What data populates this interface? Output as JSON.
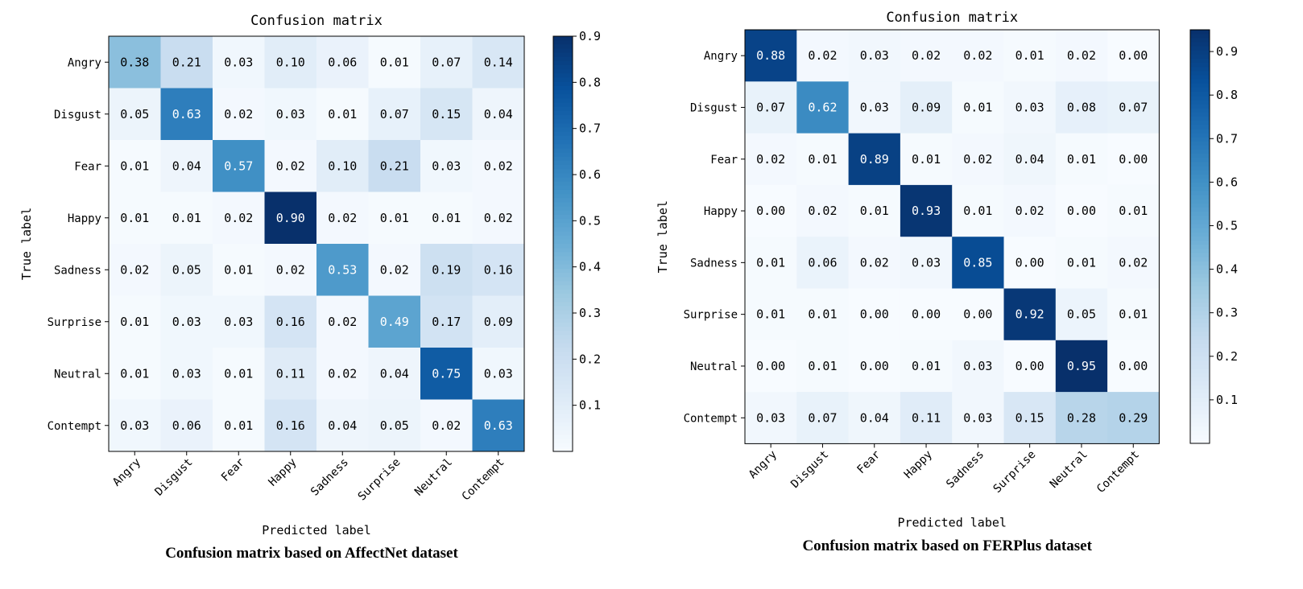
{
  "chart_data": [
    {
      "type": "heatmap",
      "title": "Confusion matrix",
      "xlabel": "Predicted label",
      "ylabel": "True label",
      "caption": "Confusion matrix based on AffectNet dataset",
      "categories": [
        "Angry",
        "Disgust",
        "Fear",
        "Happy",
        "Sadness",
        "Surprise",
        "Neutral",
        "Contempt"
      ],
      "values": [
        [
          0.38,
          0.21,
          0.03,
          0.1,
          0.06,
          0.01,
          0.07,
          0.14
        ],
        [
          0.05,
          0.63,
          0.02,
          0.03,
          0.01,
          0.07,
          0.15,
          0.04
        ],
        [
          0.01,
          0.04,
          0.57,
          0.02,
          0.1,
          0.21,
          0.03,
          0.02
        ],
        [
          0.01,
          0.01,
          0.02,
          0.9,
          0.02,
          0.01,
          0.01,
          0.02
        ],
        [
          0.02,
          0.05,
          0.01,
          0.02,
          0.53,
          0.02,
          0.19,
          0.16
        ],
        [
          0.01,
          0.03,
          0.03,
          0.16,
          0.02,
          0.49,
          0.17,
          0.09
        ],
        [
          0.01,
          0.03,
          0.01,
          0.11,
          0.02,
          0.04,
          0.75,
          0.03
        ],
        [
          0.03,
          0.06,
          0.01,
          0.16,
          0.04,
          0.05,
          0.02,
          0.63
        ]
      ],
      "colorbar": {
        "range": [
          0.0,
          0.9
        ],
        "ticks": [
          "0.1",
          "0.2",
          "0.3",
          "0.4",
          "0.5",
          "0.6",
          "0.7",
          "0.8",
          "0.9"
        ]
      }
    },
    {
      "type": "heatmap",
      "title": "Confusion matrix",
      "xlabel": "Predicted label",
      "ylabel": "True label",
      "caption": "Confusion matrix based on FERPlus dataset",
      "categories": [
        "Angry",
        "Disgust",
        "Fear",
        "Happy",
        "Sadness",
        "Surprise",
        "Neutral",
        "Contempt"
      ],
      "values": [
        [
          0.88,
          0.02,
          0.03,
          0.02,
          0.02,
          0.01,
          0.02,
          0.0
        ],
        [
          0.07,
          0.62,
          0.03,
          0.09,
          0.01,
          0.03,
          0.08,
          0.07
        ],
        [
          0.02,
          0.01,
          0.89,
          0.01,
          0.02,
          0.04,
          0.01,
          0.0
        ],
        [
          0.0,
          0.02,
          0.01,
          0.93,
          0.01,
          0.02,
          0.0,
          0.01
        ],
        [
          0.01,
          0.06,
          0.02,
          0.03,
          0.85,
          0.0,
          0.01,
          0.02
        ],
        [
          0.01,
          0.01,
          0.0,
          0.0,
          0.0,
          0.92,
          0.05,
          0.01
        ],
        [
          0.0,
          0.01,
          0.0,
          0.01,
          0.03,
          0.0,
          0.95,
          0.0
        ],
        [
          0.03,
          0.07,
          0.04,
          0.11,
          0.03,
          0.15,
          0.28,
          0.29
        ]
      ],
      "colorbar": {
        "range": [
          0.0,
          0.95
        ],
        "ticks": [
          "0.1",
          "0.2",
          "0.3",
          "0.4",
          "0.5",
          "0.6",
          "0.7",
          "0.8",
          "0.9"
        ]
      }
    }
  ]
}
